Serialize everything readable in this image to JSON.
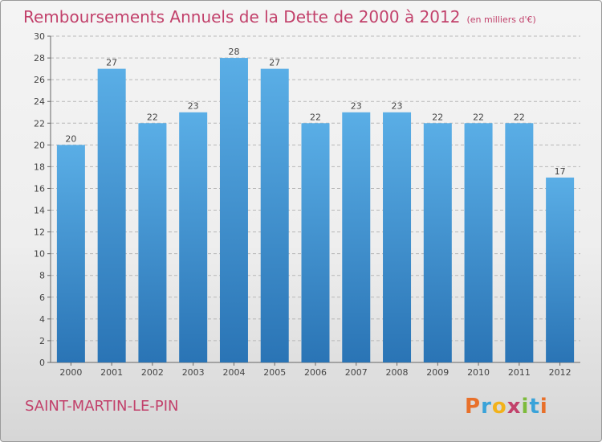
{
  "header": {
    "title": "Remboursements Annuels de la Dette de 2000 à 2012",
    "unit": "(en milliers d'€)"
  },
  "footer": {
    "city": "SAINT-MARTIN-LE-PIN",
    "logo_letters": [
      "P",
      "r",
      "o",
      "x",
      "i",
      "t",
      "i"
    ],
    "logo_colors": [
      "#e8702a",
      "#3aa3d9",
      "#f2b21b",
      "#c2416b",
      "#7dbb3c",
      "#3aa3d9",
      "#e8702a"
    ]
  },
  "colors": {
    "accent": "#c2416b",
    "bar_top": "#5aaee6",
    "bar_bottom": "#2a74b5",
    "grid": "#b8b8b8"
  },
  "chart_data": {
    "type": "bar",
    "categories": [
      "2000",
      "2001",
      "2002",
      "2003",
      "2004",
      "2005",
      "2006",
      "2007",
      "2008",
      "2009",
      "2010",
      "2011",
      "2012"
    ],
    "values": [
      20,
      27,
      22,
      23,
      28,
      27,
      22,
      23,
      23,
      22,
      22,
      22,
      17
    ],
    "yticks": [
      "0",
      "2",
      "4",
      "6",
      "8",
      "10",
      "12",
      "14",
      "16",
      "18",
      "20",
      "22",
      "24",
      "26",
      "28",
      "30"
    ],
    "ylim": [
      0,
      30
    ],
    "grid": true,
    "legend": "none"
  }
}
